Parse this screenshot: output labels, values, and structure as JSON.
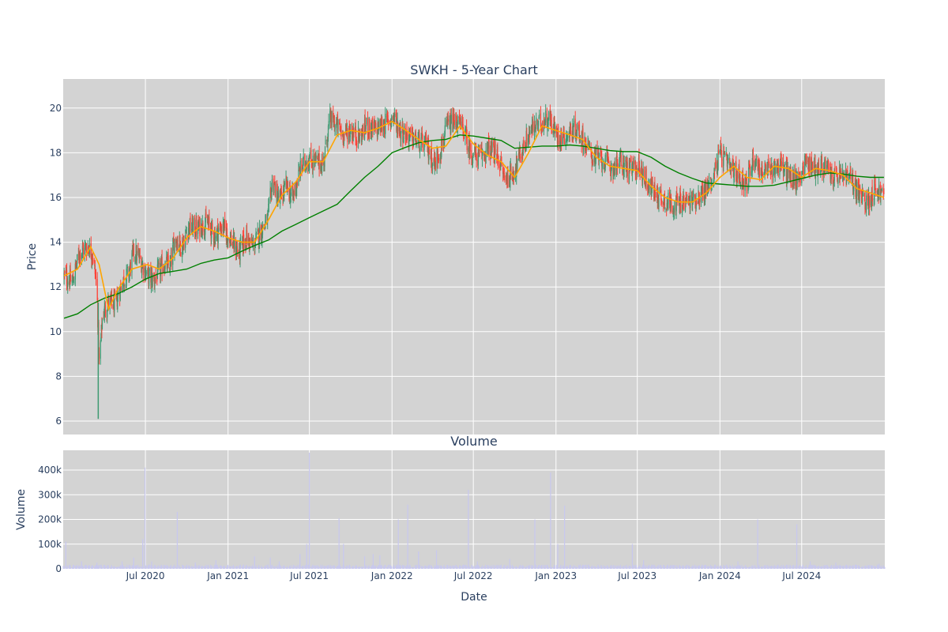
{
  "chart_data": [
    {
      "type": "candlestick",
      "title": "SWKH - 5-Year Chart",
      "xlabel": "",
      "ylabel": "Price",
      "xlim": [
        "2019-12-31",
        "2025-01-02"
      ],
      "ylim": [
        5.4,
        21.3
      ],
      "grid": true,
      "legend": "none",
      "x_tick_labels": [
        "Jul 2020",
        "Jan 2021",
        "Jul 2021",
        "Jan 2022",
        "Jul 2022",
        "Jan 2023",
        "Jul 2023",
        "Jan 2024",
        "Jul 2024"
      ],
      "x_tick_dates": [
        "2020-07-01",
        "2021-01-01",
        "2021-07-01",
        "2022-01-01",
        "2022-07-01",
        "2023-01-01",
        "2023-07-01",
        "2024-01-01",
        "2024-07-01"
      ],
      "y_ticks": [
        6,
        8,
        10,
        12,
        14,
        16,
        18,
        20
      ],
      "colors": {
        "up": "#3d9970",
        "down": "#ff4136",
        "ma_short": "#ffa500",
        "ma_long": "#008000",
        "plot_bg": "#d3d3d3"
      },
      "price_path": [
        [
          "2020-01-02",
          12.5
        ],
        [
          "2020-01-20",
          12.2
        ],
        [
          "2020-02-05",
          13.5
        ],
        [
          "2020-02-15",
          13.7
        ],
        [
          "2020-02-25",
          13.8
        ],
        [
          "2020-03-05",
          13.5
        ],
        [
          "2020-03-15",
          12.0
        ],
        [
          "2020-03-20",
          8.5
        ],
        [
          "2020-03-28",
          10.8
        ],
        [
          "2020-04-10",
          11.3
        ],
        [
          "2020-04-25",
          11.2
        ],
        [
          "2020-05-10",
          12.2
        ],
        [
          "2020-05-25",
          12.6
        ],
        [
          "2020-06-05",
          13.6
        ],
        [
          "2020-06-20",
          13.2
        ],
        [
          "2020-07-05",
          12.5
        ],
        [
          "2020-07-20",
          12.3
        ],
        [
          "2020-08-10",
          13.0
        ],
        [
          "2020-08-25",
          12.9
        ],
        [
          "2020-09-05",
          14.2
        ],
        [
          "2020-09-20",
          13.8
        ],
        [
          "2020-10-05",
          14.7
        ],
        [
          "2020-10-25",
          14.6
        ],
        [
          "2020-11-15",
          14.9
        ],
        [
          "2020-12-01",
          14.3
        ],
        [
          "2020-12-20",
          14.7
        ],
        [
          "2021-01-10",
          14.0
        ],
        [
          "2021-01-25",
          13.5
        ],
        [
          "2021-02-10",
          14.2
        ],
        [
          "2021-02-25",
          13.8
        ],
        [
          "2021-03-15",
          14.5
        ],
        [
          "2021-03-30",
          15.0
        ],
        [
          "2021-04-10",
          16.8
        ],
        [
          "2021-04-25",
          15.8
        ],
        [
          "2021-05-10",
          16.5
        ],
        [
          "2021-05-25",
          16.0
        ],
        [
          "2021-06-10",
          17.2
        ],
        [
          "2021-06-25",
          17.7
        ],
        [
          "2021-07-15",
          17.6
        ],
        [
          "2021-08-01",
          17.5
        ],
        [
          "2021-08-15",
          19.5
        ],
        [
          "2021-09-01",
          19.2
        ],
        [
          "2021-09-15",
          18.8
        ],
        [
          "2021-10-01",
          19.0
        ],
        [
          "2021-10-20",
          18.7
        ],
        [
          "2021-11-05",
          19.2
        ],
        [
          "2021-11-25",
          19.0
        ],
        [
          "2021-12-15",
          19.3
        ],
        [
          "2022-01-05",
          19.6
        ],
        [
          "2022-01-20",
          19.0
        ],
        [
          "2022-02-10",
          18.7
        ],
        [
          "2022-03-01",
          18.5
        ],
        [
          "2022-03-20",
          18.3
        ],
        [
          "2022-04-05",
          17.5
        ],
        [
          "2022-04-20",
          18.2
        ],
        [
          "2022-05-05",
          19.2
        ],
        [
          "2022-05-25",
          19.4
        ],
        [
          "2022-06-10",
          19.0
        ],
        [
          "2022-06-25",
          18.0
        ],
        [
          "2022-07-15",
          17.8
        ],
        [
          "2022-08-05",
          18.2
        ],
        [
          "2022-08-25",
          17.8
        ],
        [
          "2022-09-10",
          16.8
        ],
        [
          "2022-09-30",
          17.2
        ],
        [
          "2022-10-20",
          18.2
        ],
        [
          "2022-11-05",
          19.0
        ],
        [
          "2022-11-25",
          19.3
        ],
        [
          "2022-12-15",
          19.6
        ],
        [
          "2023-01-05",
          18.7
        ],
        [
          "2023-01-25",
          18.8
        ],
        [
          "2023-02-15",
          19.1
        ],
        [
          "2023-03-05",
          18.5
        ],
        [
          "2023-03-25",
          17.8
        ],
        [
          "2023-04-15",
          17.7
        ],
        [
          "2023-05-05",
          17.3
        ],
        [
          "2023-05-25",
          17.6
        ],
        [
          "2023-06-15",
          17.2
        ],
        [
          "2023-07-05",
          17.4
        ],
        [
          "2023-07-25",
          16.6
        ],
        [
          "2023-08-15",
          16.1
        ],
        [
          "2023-09-05",
          15.8
        ],
        [
          "2023-09-25",
          15.7
        ],
        [
          "2023-10-15",
          15.8
        ],
        [
          "2023-11-05",
          15.9
        ],
        [
          "2023-11-25",
          16.2
        ],
        [
          "2023-12-15",
          16.8
        ],
        [
          "2024-01-01",
          18.0
        ],
        [
          "2024-01-20",
          17.4
        ],
        [
          "2024-02-10",
          17.0
        ],
        [
          "2024-03-01",
          16.6
        ],
        [
          "2024-03-15",
          17.8
        ],
        [
          "2024-04-05",
          17.1
        ],
        [
          "2024-04-25",
          17.3
        ],
        [
          "2024-05-15",
          17.5
        ],
        [
          "2024-06-01",
          17.0
        ],
        [
          "2024-06-20",
          16.7
        ],
        [
          "2024-07-10",
          17.6
        ],
        [
          "2024-08-01",
          17.3
        ],
        [
          "2024-08-20",
          17.4
        ],
        [
          "2024-09-10",
          16.9
        ],
        [
          "2024-10-01",
          17.0
        ],
        [
          "2024-10-20",
          16.8
        ],
        [
          "2024-11-10",
          16.0
        ],
        [
          "2024-11-25",
          15.8
        ],
        [
          "2024-12-10",
          16.4
        ],
        [
          "2024-12-31",
          16.1
        ]
      ],
      "ma_short_path": [
        [
          "2020-01-02",
          12.5
        ],
        [
          "2020-02-01",
          12.8
        ],
        [
          "2020-03-01",
          13.8
        ],
        [
          "2020-03-20",
          13.0
        ],
        [
          "2020-04-10",
          11.0
        ],
        [
          "2020-05-01",
          11.9
        ],
        [
          "2020-06-01",
          12.8
        ],
        [
          "2020-07-05",
          13.0
        ],
        [
          "2020-08-01",
          12.8
        ],
        [
          "2020-09-01",
          13.3
        ],
        [
          "2020-10-01",
          14.2
        ],
        [
          "2020-11-01",
          14.7
        ],
        [
          "2020-12-01",
          14.5
        ],
        [
          "2021-01-01",
          14.2
        ],
        [
          "2021-02-01",
          14.0
        ],
        [
          "2021-03-01",
          14.0
        ],
        [
          "2021-04-01",
          15.0
        ],
        [
          "2021-05-01",
          16.1
        ],
        [
          "2021-06-01",
          16.7
        ],
        [
          "2021-07-01",
          17.6
        ],
        [
          "2021-08-01",
          17.6
        ],
        [
          "2021-09-01",
          18.8
        ],
        [
          "2021-10-01",
          19.0
        ],
        [
          "2021-11-01",
          18.9
        ],
        [
          "2021-12-01",
          19.1
        ],
        [
          "2022-01-01",
          19.4
        ],
        [
          "2022-02-01",
          19.0
        ],
        [
          "2022-03-01",
          18.6
        ],
        [
          "2022-04-01",
          18.2
        ],
        [
          "2022-05-01",
          18.3
        ],
        [
          "2022-06-01",
          19.2
        ],
        [
          "2022-07-01",
          18.4
        ],
        [
          "2022-08-01",
          17.9
        ],
        [
          "2022-09-01",
          17.6
        ],
        [
          "2022-10-01",
          16.9
        ],
        [
          "2022-11-01",
          18.0
        ],
        [
          "2022-12-01",
          19.2
        ],
        [
          "2023-01-01",
          19.0
        ],
        [
          "2023-02-01",
          18.8
        ],
        [
          "2023-03-01",
          18.6
        ],
        [
          "2023-04-01",
          17.8
        ],
        [
          "2023-05-01",
          17.4
        ],
        [
          "2023-06-01",
          17.3
        ],
        [
          "2023-07-01",
          17.2
        ],
        [
          "2023-08-01",
          16.5
        ],
        [
          "2023-09-01",
          16.0
        ],
        [
          "2023-10-01",
          15.8
        ],
        [
          "2023-11-01",
          15.8
        ],
        [
          "2023-12-01",
          16.2
        ],
        [
          "2024-01-01",
          16.9
        ],
        [
          "2024-02-01",
          17.4
        ],
        [
          "2024-03-01",
          16.9
        ],
        [
          "2024-04-01",
          16.8
        ],
        [
          "2024-05-01",
          17.4
        ],
        [
          "2024-06-01",
          17.3
        ],
        [
          "2024-07-01",
          16.9
        ],
        [
          "2024-08-01",
          17.3
        ],
        [
          "2024-09-01",
          17.2
        ],
        [
          "2024-10-01",
          17.0
        ],
        [
          "2024-11-01",
          16.4
        ],
        [
          "2024-12-01",
          16.2
        ],
        [
          "2024-12-31",
          16.0
        ]
      ],
      "ma_long_path": [
        [
          "2020-01-02",
          10.6
        ],
        [
          "2020-02-01",
          10.8
        ],
        [
          "2020-03-01",
          11.2
        ],
        [
          "2020-04-01",
          11.5
        ],
        [
          "2020-05-01",
          11.7
        ],
        [
          "2020-06-01",
          12.0
        ],
        [
          "2020-07-01",
          12.35
        ],
        [
          "2020-08-01",
          12.6
        ],
        [
          "2020-09-01",
          12.7
        ],
        [
          "2020-10-01",
          12.8
        ],
        [
          "2020-11-01",
          13.05
        ],
        [
          "2020-12-01",
          13.2
        ],
        [
          "2021-01-01",
          13.3
        ],
        [
          "2021-02-01",
          13.6
        ],
        [
          "2021-03-01",
          13.85
        ],
        [
          "2021-04-01",
          14.1
        ],
        [
          "2021-05-01",
          14.5
        ],
        [
          "2021-06-01",
          14.8
        ],
        [
          "2021-07-01",
          15.1
        ],
        [
          "2021-08-01",
          15.4
        ],
        [
          "2021-09-01",
          15.7
        ],
        [
          "2021-10-01",
          16.3
        ],
        [
          "2021-11-01",
          16.9
        ],
        [
          "2021-12-01",
          17.4
        ],
        [
          "2022-01-01",
          18.0
        ],
        [
          "2022-02-01",
          18.25
        ],
        [
          "2022-03-01",
          18.45
        ],
        [
          "2022-04-01",
          18.55
        ],
        [
          "2022-05-01",
          18.6
        ],
        [
          "2022-06-01",
          18.8
        ],
        [
          "2022-07-01",
          18.75
        ],
        [
          "2022-08-01",
          18.65
        ],
        [
          "2022-09-01",
          18.55
        ],
        [
          "2022-10-01",
          18.2
        ],
        [
          "2022-11-01",
          18.25
        ],
        [
          "2022-12-01",
          18.3
        ],
        [
          "2023-01-01",
          18.3
        ],
        [
          "2023-02-01",
          18.35
        ],
        [
          "2023-03-01",
          18.3
        ],
        [
          "2023-04-01",
          18.2
        ],
        [
          "2023-05-01",
          18.1
        ],
        [
          "2023-06-01",
          18.05
        ],
        [
          "2023-07-01",
          18.05
        ],
        [
          "2023-08-01",
          17.8
        ],
        [
          "2023-09-01",
          17.4
        ],
        [
          "2023-10-01",
          17.1
        ],
        [
          "2023-11-01",
          16.85
        ],
        [
          "2023-12-01",
          16.65
        ],
        [
          "2024-01-01",
          16.6
        ],
        [
          "2024-02-01",
          16.55
        ],
        [
          "2024-03-01",
          16.5
        ],
        [
          "2024-04-01",
          16.5
        ],
        [
          "2024-05-01",
          16.55
        ],
        [
          "2024-06-01",
          16.7
        ],
        [
          "2024-07-01",
          16.85
        ],
        [
          "2024-08-01",
          17.0
        ],
        [
          "2024-09-01",
          17.1
        ],
        [
          "2024-10-01",
          17.05
        ],
        [
          "2024-11-01",
          16.95
        ],
        [
          "2024-12-01",
          16.9
        ],
        [
          "2024-12-31",
          16.9
        ]
      ]
    },
    {
      "type": "bar",
      "title": "Volume",
      "xlabel": "Date",
      "ylabel": "Volume",
      "ylim": [
        0,
        480000
      ],
      "grid": true,
      "y_ticks": [
        0,
        100000,
        200000,
        300000,
        400000
      ],
      "y_tick_labels": [
        "0",
        "100k",
        "200k",
        "300k",
        "400k"
      ],
      "colors": {
        "bar": "#c8c8ee",
        "plot_bg": "#d3d3d3"
      },
      "baseline": 10000,
      "spikes": [
        [
          "2020-01-06",
          110000
        ],
        [
          "2020-02-10",
          30000
        ],
        [
          "2020-03-15",
          25000
        ],
        [
          "2020-05-10",
          30000
        ],
        [
          "2020-06-05",
          45000
        ],
        [
          "2020-06-25",
          120000
        ],
        [
          "2020-06-30",
          410000
        ],
        [
          "2020-07-15",
          30000
        ],
        [
          "2020-09-10",
          230000
        ],
        [
          "2020-10-20",
          25000
        ],
        [
          "2020-12-05",
          35000
        ],
        [
          "2021-03-01",
          50000
        ],
        [
          "2021-04-05",
          45000
        ],
        [
          "2021-04-25",
          30000
        ],
        [
          "2021-06-10",
          60000
        ],
        [
          "2021-06-25",
          100000
        ],
        [
          "2021-07-01",
          470000
        ],
        [
          "2021-09-05",
          205000
        ],
        [
          "2021-09-15",
          100000
        ],
        [
          "2021-11-01",
          50000
        ],
        [
          "2021-11-20",
          60000
        ],
        [
          "2021-12-05",
          55000
        ],
        [
          "2022-01-15",
          200000
        ],
        [
          "2022-02-05",
          260000
        ],
        [
          "2022-03-01",
          70000
        ],
        [
          "2022-04-10",
          75000
        ],
        [
          "2022-06-20",
          320000
        ],
        [
          "2022-07-10",
          30000
        ],
        [
          "2022-09-20",
          40000
        ],
        [
          "2022-11-15",
          200000
        ],
        [
          "2022-12-20",
          390000
        ],
        [
          "2023-01-05",
          100000
        ],
        [
          "2023-01-20",
          255000
        ],
        [
          "2023-06-20",
          100000
        ],
        [
          "2023-07-15",
          35000
        ],
        [
          "2024-02-10",
          30000
        ],
        [
          "2024-03-25",
          200000
        ],
        [
          "2024-06-20",
          180000
        ],
        [
          "2024-07-20",
          30000
        ],
        [
          "2024-09-15",
          25000
        ],
        [
          "2024-12-20",
          20000
        ]
      ]
    }
  ]
}
